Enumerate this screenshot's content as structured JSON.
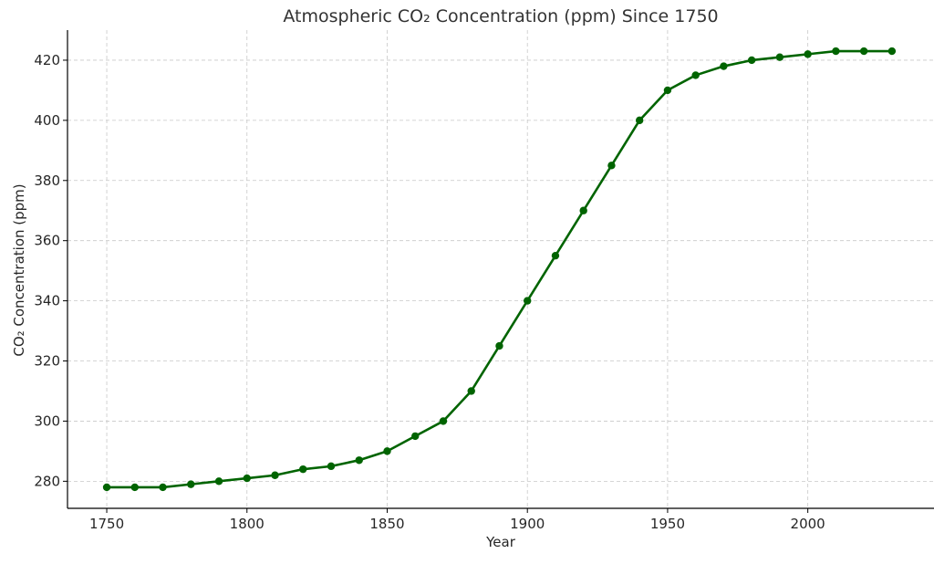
{
  "chart_data": {
    "type": "line",
    "title": "Atmospheric CO₂ Concentration (ppm) Since 1750",
    "xlabel": "Year",
    "ylabel": "CO₂ Concentration (ppm)",
    "xlim": [
      1736,
      2045
    ],
    "ylim": [
      271,
      430
    ],
    "xticks": [
      1750,
      1800,
      1850,
      1900,
      1950,
      2000
    ],
    "yticks": [
      280,
      300,
      320,
      340,
      360,
      380,
      400,
      420
    ],
    "grid": true,
    "marker": "circle",
    "colors": {
      "line": "#006400"
    },
    "series": [
      {
        "x": [
          1750,
          1760,
          1770,
          1780,
          1790,
          1800,
          1810,
          1820,
          1830,
          1840,
          1850,
          1860,
          1870,
          1880,
          1890,
          1900,
          1910,
          1920,
          1930,
          1940,
          1950,
          1960,
          1970,
          1980,
          1990,
          2000,
          2010,
          2020,
          2030
        ],
        "values": [
          278,
          278,
          278,
          279,
          280,
          281,
          282,
          284,
          285,
          287,
          290,
          295,
          300,
          310,
          325,
          340,
          355,
          370,
          385,
          400,
          410,
          415,
          418,
          420,
          421,
          422,
          423,
          423,
          423
        ]
      }
    ]
  }
}
